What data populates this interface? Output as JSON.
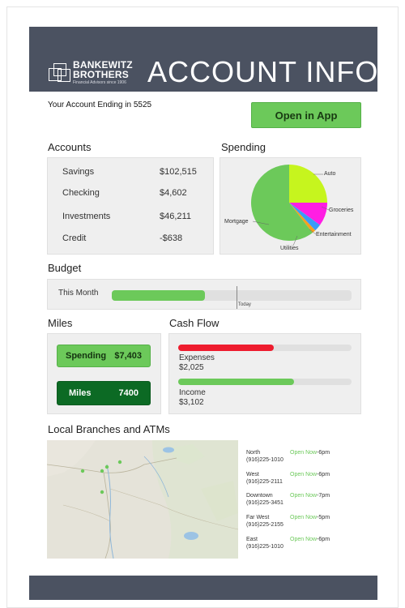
{
  "brand": {
    "name_line1": "BANKEWITZ",
    "name_line2": "BROTHERS",
    "tagline": "Financial Advisors since 1906"
  },
  "header": {
    "title": "ACCOUNT INFO"
  },
  "account_ending": "Your Account Ending in 5525",
  "open_app_label": "Open in App",
  "accounts": {
    "title": "Accounts",
    "rows": [
      {
        "name": "Savings",
        "value": "$102,515"
      },
      {
        "name": "Checking",
        "value": "$4,602"
      },
      {
        "name": "Investments",
        "value": "$46,211"
      },
      {
        "name": "Credit",
        "value": "-$638"
      }
    ]
  },
  "spending": {
    "title": "Spending",
    "labels": {
      "auto": "Auto",
      "groceries": "Groceries",
      "entertainment": "Entertainment",
      "utilities": "Utilities",
      "mortgage": "Mortgage"
    }
  },
  "chart_data": {
    "type": "pie",
    "slices": [
      {
        "label": "Auto",
        "value": 25,
        "color": "#c6f51e"
      },
      {
        "label": "Groceries",
        "value": 10,
        "color": "#ff1ee3"
      },
      {
        "label": "Entertainment",
        "value": 3,
        "color": "#3a9bf7"
      },
      {
        "label": "Utilities",
        "value": 1.5,
        "color": "#f7a01e"
      },
      {
        "label": "Mortgage",
        "value": 60.5,
        "color": "#6cc95a"
      }
    ]
  },
  "budget": {
    "title": "Budget",
    "this_month_label": "This Month",
    "today_label": "Today",
    "progress": 0.39,
    "today_marker": 0.52,
    "fill_color": "#6cc95a"
  },
  "miles": {
    "title": "Miles",
    "spending_label": "Spending",
    "spending_value": "$7,403",
    "miles_label": "Miles",
    "miles_value": "7400"
  },
  "cash_flow": {
    "title": "Cash Flow",
    "expenses_label": "Expenses",
    "expenses_value": "$2,025",
    "expenses_progress": 0.55,
    "income_label": "Income",
    "income_value": "$3,102",
    "income_progress": 0.67
  },
  "branches": {
    "title": "Local Branches and ATMs",
    "open_text": "Open Now",
    "items": [
      {
        "name": "North",
        "phone": "(916)225-1010",
        "close": "-6pm"
      },
      {
        "name": "West",
        "phone": "(916)225-2111",
        "close": "-6pm"
      },
      {
        "name": "Downtown",
        "phone": "(916)225-3451",
        "close": "-7pm"
      },
      {
        "name": "Far West",
        "phone": "(916)225-2155",
        "close": "-5pm"
      },
      {
        "name": "East",
        "phone": "(916)225-1010",
        "close": "-6pm"
      }
    ]
  }
}
